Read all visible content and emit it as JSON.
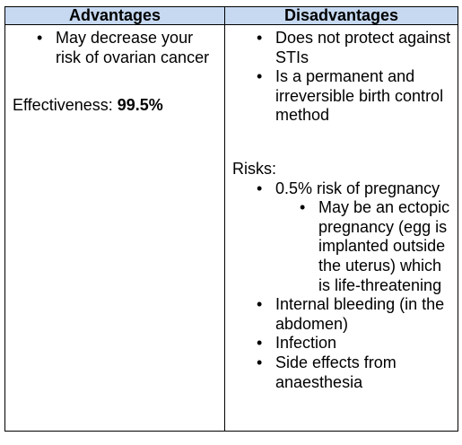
{
  "table": {
    "header_left": "Advantages",
    "header_right": "Disadvantages"
  },
  "advantages": {
    "items": [
      "May decrease your risk of ovarian cancer"
    ],
    "effectiveness_label": "Effectiveness: ",
    "effectiveness_value": "99.5%"
  },
  "disadvantages": {
    "items": [
      "Does not protect against STIs",
      "Is a permanent and irreversible birth control method"
    ],
    "risks_label": "Risks:",
    "risks": [
      "0.5% risk of pregnancy",
      "Internal bleeding (in the abdomen)",
      "Infection",
      "Side effects from anaesthesia"
    ],
    "pregnancy_subitem": "May be an ectopic pregnancy (egg is implanted outside the uterus) which is life-threatening"
  },
  "colors": {
    "header_background": "#c6d9f1",
    "border": "#000000",
    "text": "#000000"
  }
}
